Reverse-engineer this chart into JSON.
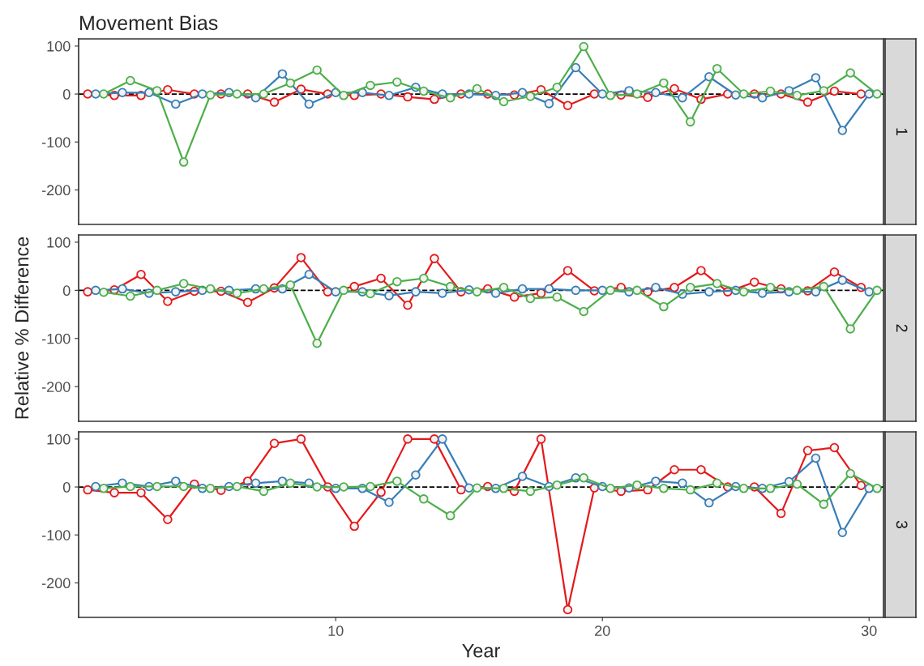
{
  "chart_data": [
    {
      "type": "line",
      "title": "Movement Bias",
      "annotations": [
        "1"
      ],
      "xlim": [
        0.36,
        30.54
      ],
      "ylim": [
        -272,
        115
      ],
      "yticks": [
        100,
        0,
        -100,
        -200
      ],
      "tick_labels": "y",
      "marker": "circle",
      "line_style": "solid",
      "grid": false,
      "legend": false,
      "ref_lines": [
        {
          "axis": "y",
          "value": 0,
          "color": "#000000",
          "line_style": "dashed"
        }
      ],
      "series": [
        {
          "color": "#e41a1c",
          "x": [
            0.7,
            1.7,
            2.7,
            3.7,
            4.7,
            5.7,
            6.7,
            7.7,
            8.7,
            9.7,
            10.7,
            11.7,
            12.7,
            13.7,
            14.7,
            15.7,
            16.7,
            17.7,
            18.7,
            19.7,
            20.7,
            21.7,
            22.7,
            23.7,
            24.7,
            25.7,
            26.7,
            27.7,
            28.7,
            29.7
          ],
          "values": [
            0,
            -3,
            -3,
            9,
            0,
            0,
            0,
            -17,
            10,
            0,
            -3,
            0,
            -6,
            -11,
            0,
            0,
            -2,
            9,
            -24,
            0,
            -2,
            -7,
            11,
            -11,
            0,
            0,
            0,
            -17,
            6,
            0
          ]
        },
        {
          "color": "#377eb8",
          "x": [
            1,
            2,
            3,
            4,
            5,
            6,
            7,
            8,
            9,
            10,
            11,
            12,
            13,
            14,
            15,
            16,
            17,
            18,
            19,
            20,
            21,
            22,
            23,
            24,
            25,
            26,
            27,
            28,
            29,
            30
          ],
          "values": [
            0,
            3,
            3,
            -21,
            0,
            3,
            -8,
            42,
            -21,
            3,
            3,
            -3,
            14,
            0,
            0,
            -3,
            3,
            -20,
            55,
            0,
            7,
            3,
            -8,
            36,
            -2,
            -8,
            7,
            34,
            -76,
            0
          ]
        },
        {
          "color": "#4daf4a",
          "x": [
            1.3,
            2.3,
            3.3,
            4.3,
            5.3,
            6.3,
            7.3,
            8.3,
            9.3,
            10.3,
            11.3,
            12.3,
            13.3,
            14.3,
            15.3,
            16.3,
            17.3,
            18.3,
            19.3,
            20.3,
            21.3,
            22.3,
            23.3,
            24.3,
            25.3,
            26.3,
            27.3,
            28.3,
            29.3,
            30.3
          ],
          "values": [
            0,
            28,
            7,
            -142,
            -2,
            0,
            0,
            23,
            50,
            -3,
            18,
            25,
            6,
            -8,
            11,
            -16,
            -5,
            14,
            99,
            -3,
            0,
            23,
            -58,
            53,
            0,
            6,
            -3,
            7,
            44,
            0
          ]
        }
      ]
    },
    {
      "type": "line",
      "ylabel": "Relative % Difference",
      "annotations": [
        "2"
      ],
      "xlim": [
        0.36,
        30.54
      ],
      "ylim": [
        -272,
        115
      ],
      "yticks": [
        100,
        0,
        -100,
        -200
      ],
      "tick_labels": "y",
      "marker": "circle",
      "line_style": "solid",
      "grid": false,
      "legend": false,
      "ref_lines": [
        {
          "axis": "y",
          "value": 0,
          "color": "#000000",
          "line_style": "dashed"
        }
      ],
      "series": [
        {
          "color": "#e41a1c",
          "x": [
            0.7,
            1.7,
            2.7,
            3.7,
            4.7,
            5.7,
            6.7,
            7.7,
            8.7,
            9.7,
            10.7,
            11.7,
            12.7,
            13.7,
            14.7,
            15.7,
            16.7,
            17.7,
            18.7,
            19.7,
            20.7,
            21.7,
            22.7,
            23.7,
            24.7,
            25.7,
            26.7,
            27.7,
            28.7,
            29.7
          ],
          "values": [
            -3,
            1,
            33,
            -23,
            -2,
            -2,
            -25,
            5,
            68,
            -3,
            8,
            25,
            -31,
            66,
            -3,
            3,
            -14,
            -6,
            41,
            -1,
            6,
            -3,
            6,
            41,
            -3,
            17,
            3,
            -1,
            38,
            6
          ]
        },
        {
          "color": "#377eb8",
          "x": [
            1,
            2,
            3,
            4,
            5,
            6,
            7,
            8,
            9,
            10,
            11,
            12,
            13,
            14,
            15,
            16,
            17,
            18,
            19,
            20,
            21,
            22,
            23,
            24,
            25,
            26,
            27,
            28,
            29,
            30
          ],
          "values": [
            0,
            3,
            -6,
            -3,
            0,
            0,
            3,
            3,
            33,
            -3,
            -3,
            -11,
            -3,
            -6,
            1,
            -6,
            3,
            3,
            0,
            0,
            -3,
            6,
            -8,
            -3,
            0,
            -6,
            -3,
            -3,
            21,
            -3
          ]
        },
        {
          "color": "#4daf4a",
          "x": [
            1.3,
            2.3,
            3.3,
            4.3,
            5.3,
            6.3,
            7.3,
            8.3,
            9.3,
            10.3,
            11.3,
            12.3,
            13.3,
            14.3,
            15.3,
            16.3,
            17.3,
            18.3,
            19.3,
            20.3,
            21.3,
            22.3,
            23.3,
            24.3,
            25.3,
            26.3,
            27.3,
            28.3,
            29.3,
            30.3
          ],
          "values": [
            -4,
            -12,
            0,
            14,
            3,
            -6,
            3,
            11,
            -110,
            0,
            -7,
            18,
            25,
            8,
            -3,
            6,
            -17,
            -14,
            -44,
            0,
            0,
            -34,
            6,
            14,
            -3,
            6,
            0,
            8,
            -80,
            0
          ]
        }
      ]
    },
    {
      "type": "line",
      "xlabel": "Year",
      "annotations": [
        "3"
      ],
      "xlim": [
        0.36,
        30.54
      ],
      "xticks": [
        10,
        20,
        30
      ],
      "ylim": [
        -272,
        115
      ],
      "yticks": [
        100,
        0,
        -100,
        -200
      ],
      "marker": "circle",
      "line_style": "solid",
      "grid": false,
      "legend": false,
      "ref_lines": [
        {
          "axis": "y",
          "value": 0,
          "color": "#000000",
          "line_style": "dashed"
        }
      ],
      "series": [
        {
          "color": "#e41a1c",
          "x": [
            0.7,
            1.7,
            2.7,
            3.7,
            4.7,
            5.7,
            6.7,
            7.7,
            8.7,
            9.7,
            10.7,
            11.7,
            12.7,
            13.7,
            14.7,
            15.7,
            16.7,
            17.7,
            18.7,
            19.7,
            20.7,
            21.7,
            22.7,
            23.7,
            24.7,
            25.7,
            26.7,
            27.7,
            28.7,
            29.7
          ],
          "values": [
            -6,
            -12,
            -12,
            -68,
            6,
            -7,
            12,
            91,
            100,
            0,
            -82,
            -11,
            100,
            100,
            -6,
            1,
            -9,
            100,
            -256,
            -2,
            -9,
            -6,
            36,
            36,
            0,
            0,
            -55,
            76,
            82,
            3
          ]
        },
        {
          "color": "#377eb8",
          "x": [
            1,
            2,
            3,
            4,
            5,
            6,
            7,
            8,
            9,
            10,
            11,
            12,
            13,
            14,
            15,
            16,
            17,
            18,
            19,
            20,
            21,
            22,
            23,
            24,
            25,
            26,
            27,
            28,
            29,
            30
          ],
          "values": [
            1,
            8,
            1,
            12,
            -3,
            1,
            8,
            12,
            8,
            -3,
            -3,
            -32,
            25,
            100,
            -2,
            -3,
            22,
            1,
            19,
            1,
            -2,
            12,
            8,
            -33,
            1,
            -3,
            11,
            60,
            -95,
            -3
          ]
        },
        {
          "color": "#4daf4a",
          "x": [
            1.3,
            2.3,
            3.3,
            4.3,
            5.3,
            6.3,
            7.3,
            8.3,
            9.3,
            10.3,
            11.3,
            12.3,
            13.3,
            14.3,
            15.3,
            16.3,
            17.3,
            18.3,
            19.3,
            20.3,
            21.3,
            22.3,
            23.3,
            24.3,
            25.3,
            26.3,
            27.3,
            28.3,
            29.3,
            30.3
          ],
          "values": [
            -3,
            1,
            1,
            1,
            -3,
            1,
            -9,
            8,
            0,
            0,
            1,
            12,
            -25,
            -60,
            -2,
            -3,
            -9,
            4,
            19,
            -3,
            4,
            -3,
            -6,
            8,
            -3,
            -3,
            6,
            -36,
            28,
            -3
          ]
        }
      ]
    }
  ]
}
